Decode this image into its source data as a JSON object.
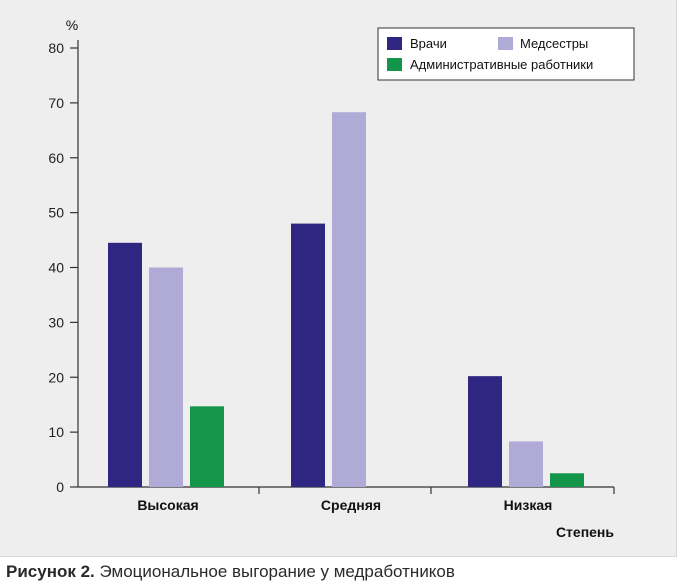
{
  "caption": {
    "label": "Рисунок 2.",
    "text": "Эмоциональное выгорание у медработников"
  },
  "chart_data": {
    "type": "bar",
    "categories": [
      "Высокая",
      "Средняя",
      "Низкая"
    ],
    "series": [
      {
        "name": "Врачи",
        "values": [
          44.5,
          48,
          20.2
        ],
        "color": "#2e2680"
      },
      {
        "name": "Медсестры",
        "values": [
          40,
          68.3,
          8.3
        ],
        "color": "#b0aad6"
      },
      {
        "name": "Административные работники",
        "values": [
          14.7,
          null,
          2.5
        ],
        "color": "#14964a"
      }
    ],
    "ylabel": "%",
    "xlabel": "Степень",
    "ylim": [
      0,
      80
    ],
    "yticks": [
      0,
      10,
      20,
      30,
      40,
      50,
      60,
      70,
      80
    ],
    "legend_position": "top-right",
    "grid": false
  }
}
